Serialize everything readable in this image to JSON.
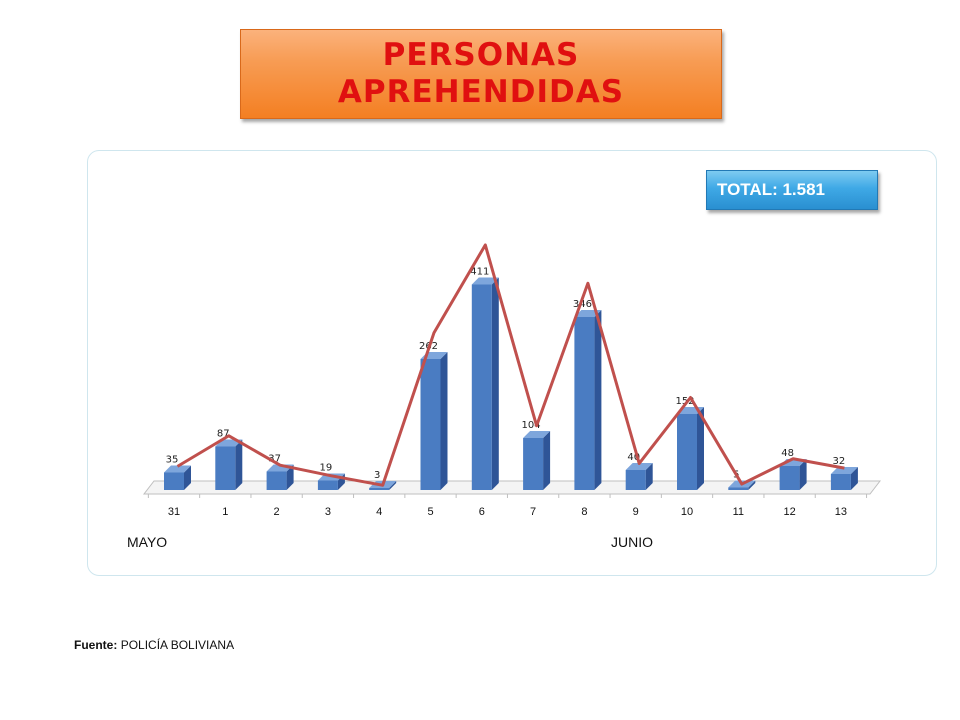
{
  "header": {
    "title_line1": "PERSONAS",
    "title_line2": "APREHENDIDAS"
  },
  "total_label": "TOTAL: 1.581",
  "months": {
    "may": "MAYO",
    "june": "JUNIO"
  },
  "source": {
    "label": "Fuente:",
    "value": "POLICÍA BOLIVIANA"
  },
  "colors": {
    "bar": "#4a7cc2",
    "line": "#c0504d",
    "title_text": "#e01010",
    "title_bg": "#f47f22",
    "total_bg": "#3fa9e6"
  },
  "chart_data": {
    "type": "bar",
    "categories": [
      "31",
      "1",
      "2",
      "3",
      "4",
      "5",
      "6",
      "7",
      "8",
      "9",
      "10",
      "11",
      "12",
      "13"
    ],
    "series": [
      {
        "values": [
          35,
          87,
          37,
          19,
          3,
          262,
          411,
          104,
          346,
          40,
          152,
          5,
          48,
          32
        ]
      }
    ],
    "line_overlay": true,
    "title": "",
    "xlabel": "",
    "ylabel": "",
    "ylim": [
      0,
      450
    ],
    "grid": false,
    "legend": "none"
  }
}
